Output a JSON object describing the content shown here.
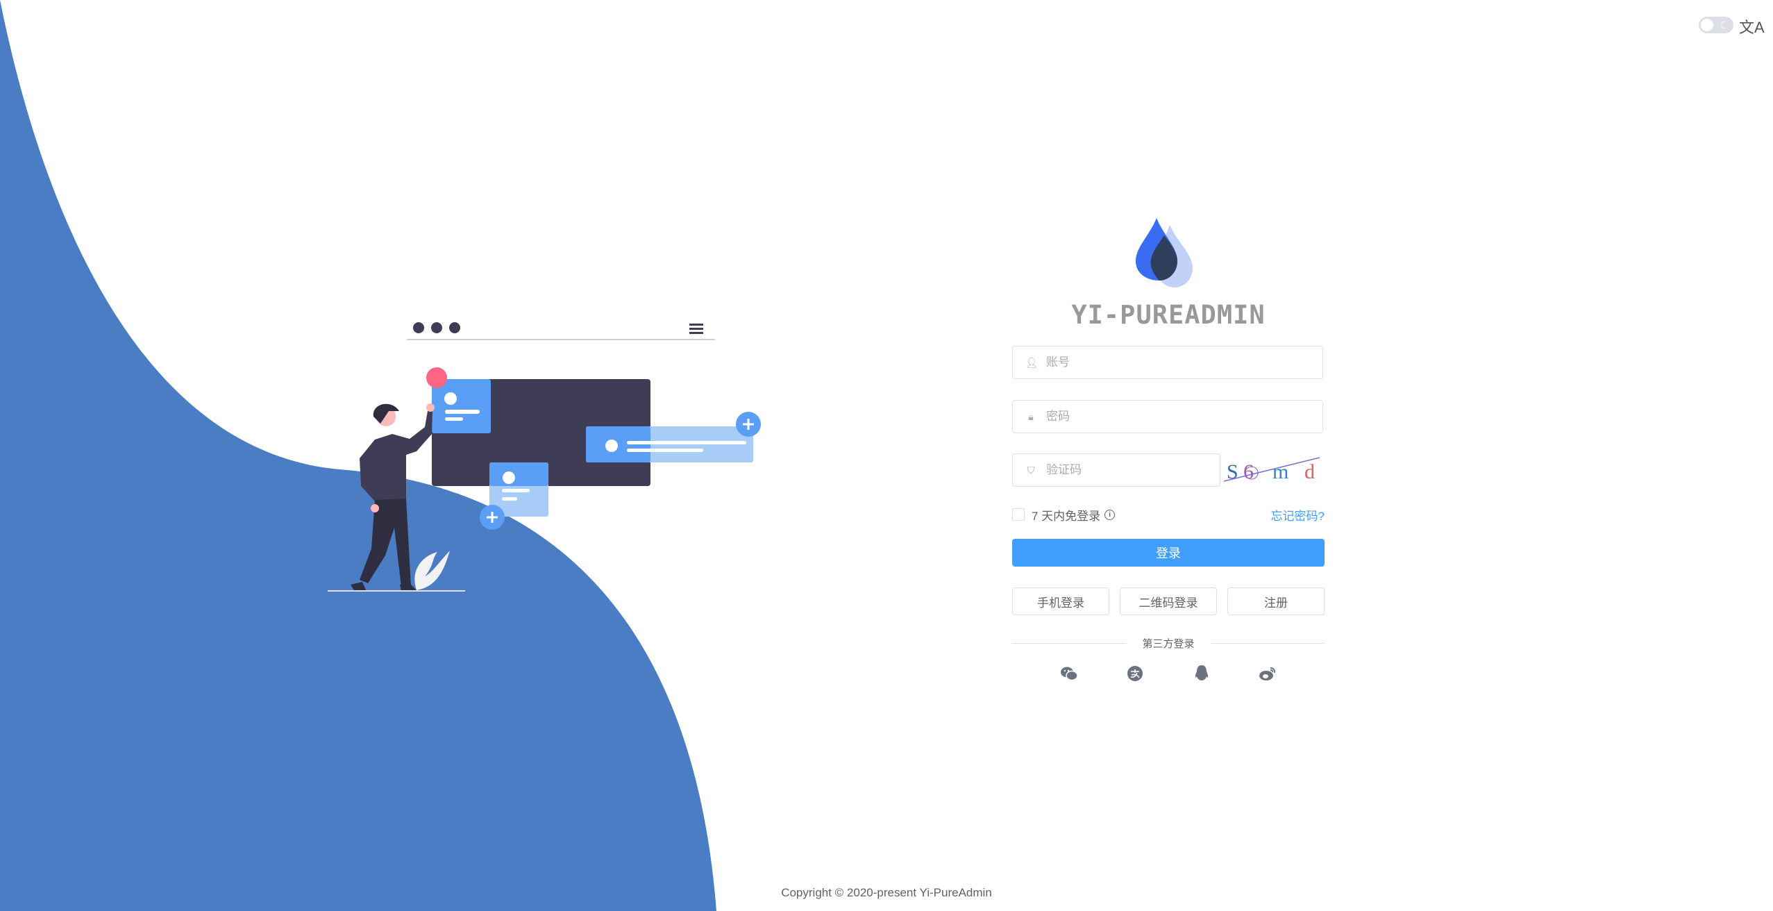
{
  "brand": {
    "title": "YI-PUREADMIN",
    "logo_colors": [
      "#396cf0",
      "#2f3e5a",
      "#c1d1f7"
    ]
  },
  "topbar": {
    "theme_toggle": "dark-mode-toggle",
    "language_icon": "translate-icon",
    "language_glyph": "文A"
  },
  "form": {
    "username_placeholder": "账号",
    "password_placeholder": "密码",
    "captcha_placeholder": "验证码",
    "captcha_text": [
      "S",
      "6",
      "m",
      "d"
    ],
    "remember_label": "7 天内免登录",
    "forgot_link": "忘记密码?",
    "login_button": "登录",
    "alt_buttons": [
      "手机登录",
      "二维码登录",
      "注册"
    ],
    "third_party_label": "第三方登录",
    "third_party_icons": [
      "wechat-icon",
      "alipay-icon",
      "qq-icon",
      "weibo-icon"
    ]
  },
  "footer": {
    "copyright": "Copyright © 2020-present Yi-PureAdmin"
  },
  "colors": {
    "primary": "#409eff",
    "wave": "#4a7dc4",
    "illustration_dark": "#3f3d56",
    "card": "#5a9ef5",
    "accent": "#ff6584"
  }
}
